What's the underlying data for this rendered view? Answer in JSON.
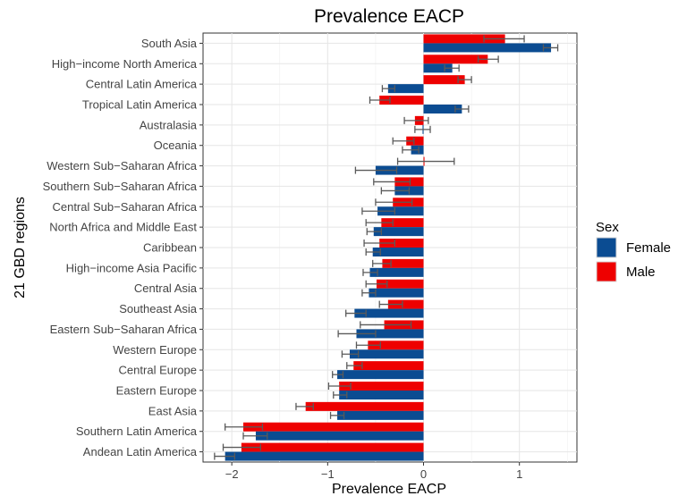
{
  "chart_data": {
    "type": "bar",
    "orientation": "horizontal",
    "title": "Prevalence EACP",
    "xlabel": "Prevalence EACP",
    "ylabel": "21 GBD regions",
    "xlim": [
      -2.3,
      1.6
    ],
    "xticks": [
      -2,
      -1,
      0,
      1
    ],
    "grid": true,
    "legend_position": "right",
    "legend_title": "Sex",
    "categories": [
      "South Asia",
      "High−income North America",
      "Central Latin America",
      "Tropical Latin America",
      "Australasia",
      "Oceania",
      "Western Sub−Saharan Africa",
      "Southern Sub−Saharan Africa",
      "Central Sub−Saharan Africa",
      "North Africa and Middle East",
      "Caribbean",
      "High−income Asia Pacific",
      "Central Asia",
      "Southeast Asia",
      "Eastern Sub−Saharan Africa",
      "Western Europe",
      "Central Europe",
      "Eastern Europe",
      "East Asia",
      "Southern Latin America",
      "Andean Latin America"
    ],
    "series": [
      {
        "name": "Male",
        "color": "#EE0000",
        "values": [
          0.85,
          0.67,
          0.43,
          -0.46,
          -0.09,
          -0.18,
          0.01,
          -0.3,
          -0.32,
          -0.44,
          -0.46,
          -0.43,
          -0.49,
          -0.37,
          -0.41,
          -0.58,
          -0.73,
          -0.88,
          -1.23,
          -1.88,
          -1.9
        ],
        "lower": [
          0.63,
          0.57,
          0.36,
          -0.56,
          -0.2,
          -0.32,
          -0.27,
          -0.52,
          -0.5,
          -0.6,
          -0.62,
          -0.53,
          -0.6,
          -0.46,
          -0.66,
          -0.7,
          -0.8,
          -0.99,
          -1.33,
          -2.07,
          -2.09
        ],
        "upper": [
          1.05,
          0.78,
          0.5,
          -0.35,
          0.05,
          -0.1,
          0.32,
          -0.14,
          -0.12,
          -0.32,
          -0.3,
          -0.34,
          -0.38,
          -0.22,
          -0.13,
          -0.45,
          -0.64,
          -0.76,
          -1.15,
          -1.68,
          -1.7
        ]
      },
      {
        "name": "Female",
        "color": "#0B4C92",
        "values": [
          1.33,
          0.3,
          -0.37,
          0.4,
          -0.01,
          -0.13,
          -0.5,
          -0.3,
          -0.48,
          -0.52,
          -0.53,
          -0.56,
          -0.57,
          -0.72,
          -0.7,
          -0.77,
          -0.9,
          -0.88,
          -0.9,
          -1.75,
          -2.07
        ],
        "lower": [
          1.25,
          0.22,
          -0.43,
          0.33,
          -0.09,
          -0.22,
          -0.71,
          -0.44,
          -0.64,
          -0.59,
          -0.6,
          -0.63,
          -0.64,
          -0.81,
          -0.89,
          -0.85,
          -0.95,
          -0.94,
          -0.97,
          -1.88,
          -2.18
        ],
        "upper": [
          1.4,
          0.37,
          -0.3,
          0.47,
          0.07,
          -0.05,
          -0.28,
          -0.15,
          -0.3,
          -0.44,
          -0.45,
          -0.48,
          -0.5,
          -0.6,
          -0.5,
          -0.68,
          -0.84,
          -0.8,
          -0.83,
          -1.63,
          -1.97
        ]
      }
    ],
    "legend_order": [
      "Female",
      "Male"
    ]
  }
}
